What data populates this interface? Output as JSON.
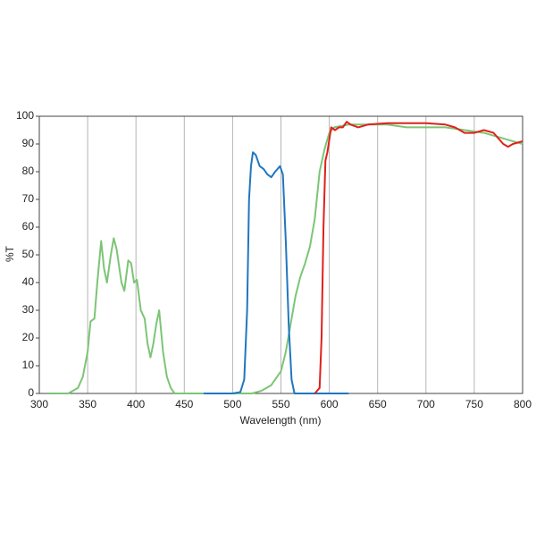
{
  "chart_data": {
    "type": "line",
    "xlabel": "Wavelength (nm)",
    "ylabel": "%T",
    "xlim": [
      300,
      800
    ],
    "ylim": [
      0,
      100
    ],
    "xticks": [
      300,
      350,
      400,
      450,
      500,
      550,
      600,
      650,
      700,
      750,
      800
    ],
    "yticks": [
      0,
      10,
      20,
      30,
      40,
      50,
      60,
      70,
      80,
      90,
      100
    ],
    "grid": "x",
    "series": [
      {
        "color": "#7cc576",
        "x": [
          310,
          330,
          340,
          345,
          350,
          353,
          357,
          360,
          364,
          367,
          370,
          374,
          377,
          380,
          385,
          388,
          392,
          395,
          398,
          401,
          405,
          409,
          412,
          415,
          418,
          421,
          424,
          428,
          432,
          436,
          440,
          460,
          510,
          520,
          530,
          540,
          550,
          555,
          560,
          565,
          570,
          575,
          580,
          585,
          590,
          595,
          600,
          605,
          620,
          640,
          660,
          680,
          700,
          720,
          740,
          760,
          780,
          790,
          800
        ],
        "values": [
          0,
          0,
          2,
          6,
          15,
          26,
          27,
          40,
          55,
          45,
          40,
          50,
          56,
          52,
          40,
          37,
          48,
          47,
          40,
          41,
          30,
          27,
          18,
          13,
          18,
          25,
          30,
          15,
          6,
          2,
          0,
          0,
          0,
          0,
          1,
          3,
          8,
          15,
          25,
          35,
          42,
          47,
          53,
          63,
          80,
          88,
          94,
          96,
          97,
          97,
          97,
          96,
          96,
          96,
          95,
          94,
          92,
          91,
          90
        ]
      },
      {
        "color": "#1f77c0",
        "x": [
          470,
          500,
          508,
          512,
          515,
          517,
          519,
          521,
          524,
          528,
          532,
          536,
          540,
          544,
          549,
          552,
          555,
          558,
          561,
          564,
          600,
          620
        ],
        "values": [
          0,
          0,
          0.5,
          5,
          30,
          70,
          82,
          87,
          86,
          82,
          81,
          79,
          78,
          80,
          82,
          79,
          55,
          25,
          5,
          0,
          0,
          0
        ]
      },
      {
        "color": "#e0201b",
        "x": [
          585,
          590,
          592,
          594,
          596,
          598,
          602,
          606,
          610,
          614,
          618,
          622,
          630,
          640,
          660,
          680,
          700,
          720,
          730,
          740,
          750,
          760,
          770,
          780,
          785,
          790,
          800
        ],
        "values": [
          0,
          2,
          20,
          60,
          84,
          87,
          96,
          95,
          96,
          96,
          98,
          97,
          96,
          97,
          97.5,
          97.5,
          97.5,
          97,
          96,
          94,
          94,
          95,
          94,
          90,
          89,
          90,
          91
        ]
      }
    ]
  }
}
